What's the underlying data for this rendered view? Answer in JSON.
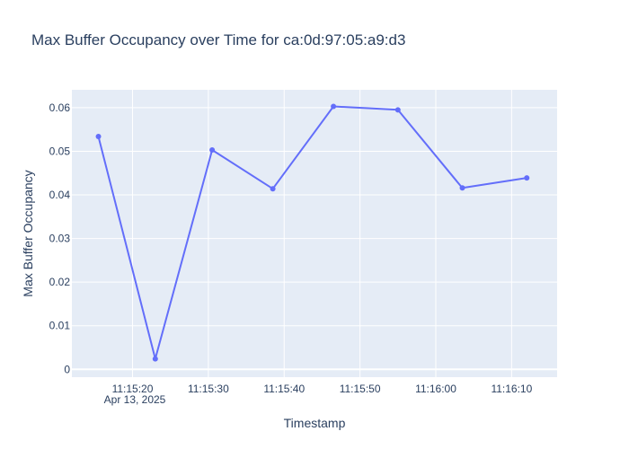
{
  "chart_data": {
    "type": "line",
    "title": "Max Buffer Occupancy over Time for ca:0d:97:05:a9:d3",
    "xlabel": "Timestamp",
    "ylabel": "Max Buffer Occupancy",
    "x_date_label": "Apr 13, 2025",
    "x": [
      "11:15:15.5",
      "11:15:23.0",
      "11:15:30.5",
      "11:15:38.5",
      "11:15:46.5",
      "11:15:55.0",
      "11:16:03.5",
      "11:16:12.0"
    ],
    "values": [
      0.0534,
      0.0024,
      0.0503,
      0.0414,
      0.0603,
      0.0595,
      0.0416,
      0.0439
    ],
    "xlim": [
      "11:15:12.0",
      "11:16:16.0"
    ],
    "ylim": [
      -0.0018,
      0.0641
    ],
    "x_ticks": [
      "11:15:20",
      "11:15:30",
      "11:15:40",
      "11:15:50",
      "11:16:00",
      "11:16:10"
    ],
    "y_ticks": [
      "0",
      "0.01",
      "0.02",
      "0.03",
      "0.04",
      "0.05",
      "0.06"
    ],
    "y_tick_values": [
      0,
      0.01,
      0.02,
      0.03,
      0.04,
      0.05,
      0.06
    ],
    "grid": true,
    "colors": {
      "line": "#636efa",
      "plot_bg": "#e5ecf6",
      "grid": "#ffffff",
      "text": "#2a3f5f"
    }
  }
}
